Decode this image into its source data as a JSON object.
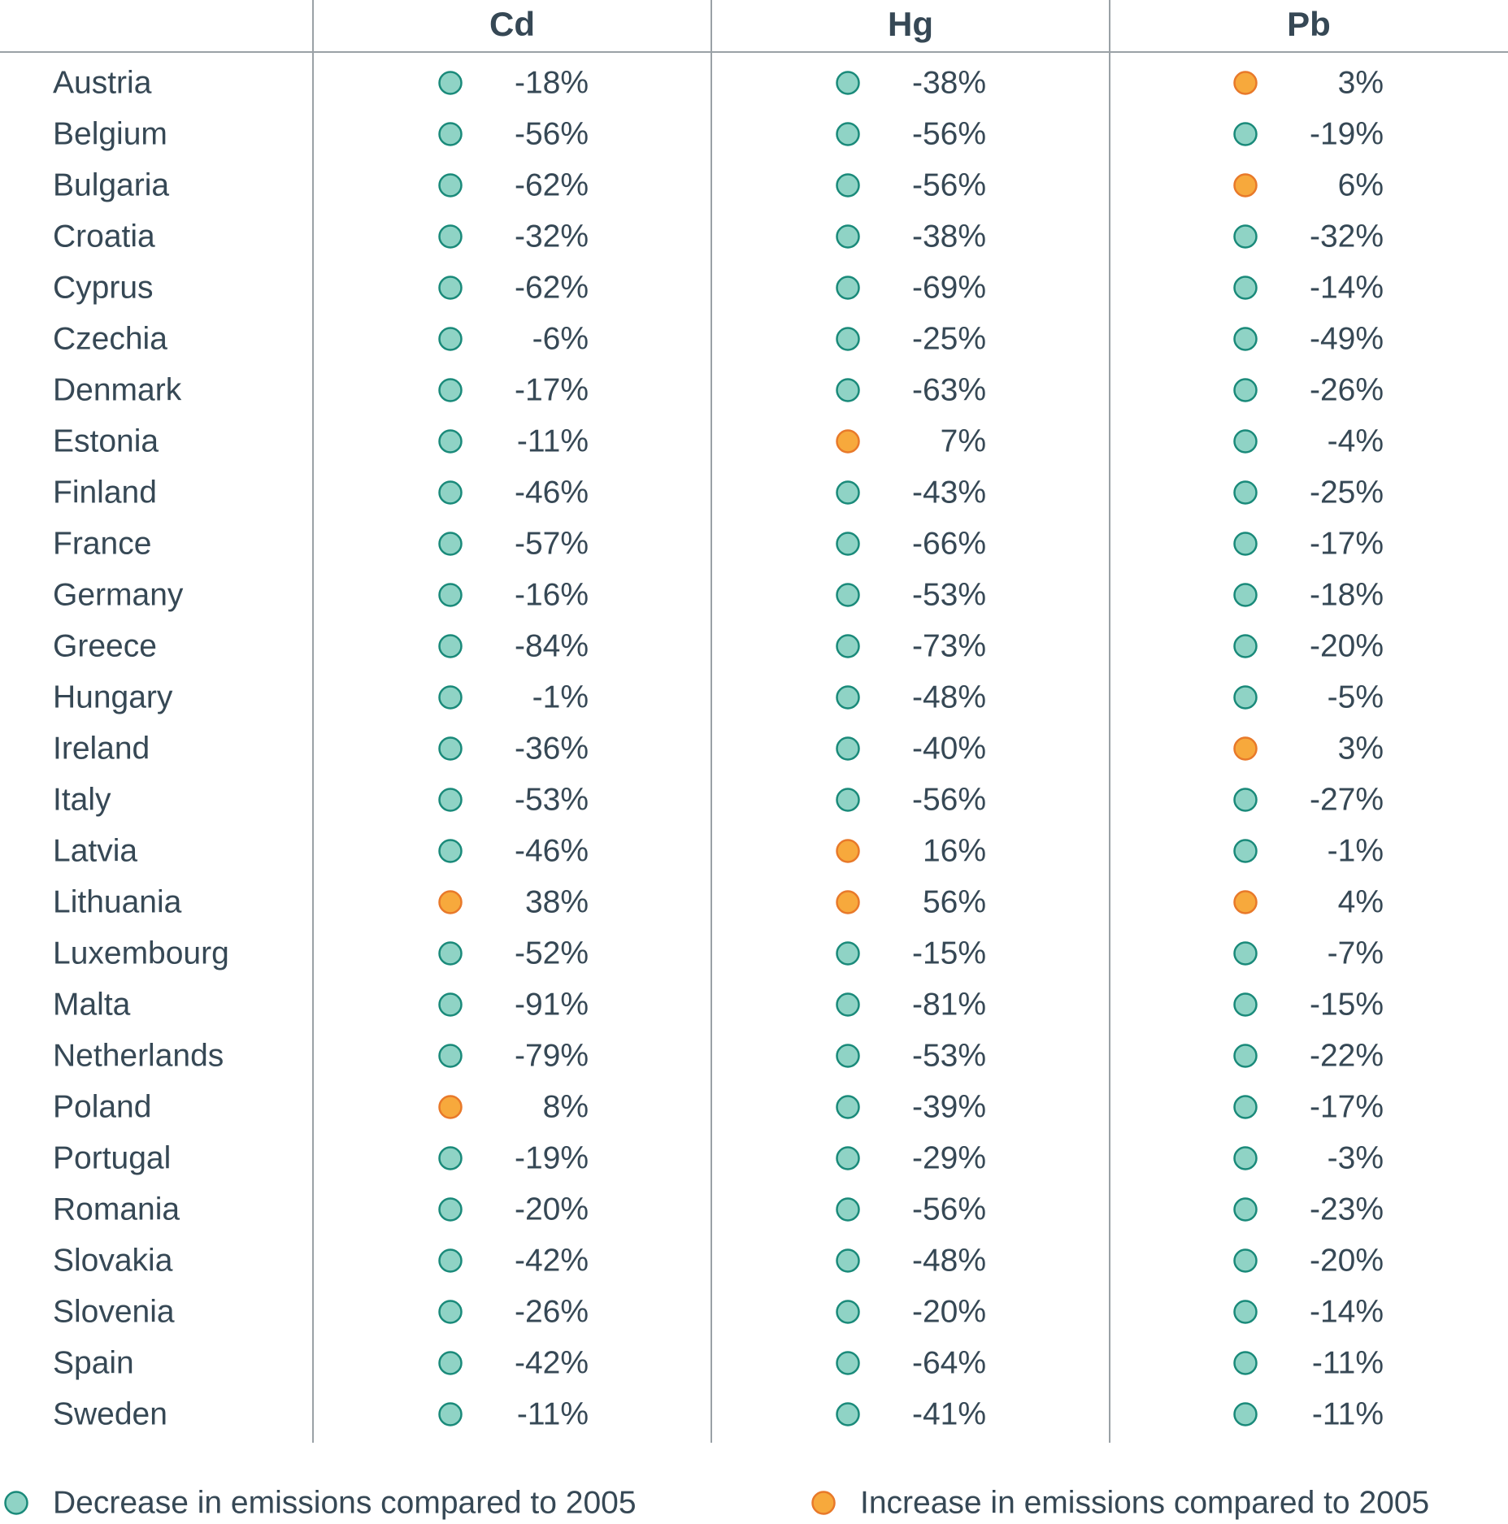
{
  "chart_data": {
    "type": "table",
    "columns": [
      "Cd",
      "Hg",
      "Pb"
    ],
    "rows": [
      {
        "country": "Austria",
        "values": [
          -18,
          -38,
          3
        ],
        "labels": [
          "-18%",
          "-38%",
          "3%"
        ]
      },
      {
        "country": "Belgium",
        "values": [
          -56,
          -56,
          -19
        ],
        "labels": [
          "-56%",
          "-56%",
          "-19%"
        ]
      },
      {
        "country": "Bulgaria",
        "values": [
          -62,
          -56,
          6
        ],
        "labels": [
          "-62%",
          "-56%",
          "6%"
        ]
      },
      {
        "country": "Croatia",
        "values": [
          -32,
          -38,
          -32
        ],
        "labels": [
          "-32%",
          "-38%",
          "-32%"
        ]
      },
      {
        "country": "Cyprus",
        "values": [
          -62,
          -69,
          -14
        ],
        "labels": [
          "-62%",
          "-69%",
          "-14%"
        ]
      },
      {
        "country": "Czechia",
        "values": [
          -6,
          -25,
          -49
        ],
        "labels": [
          "-6%",
          "-25%",
          "-49%"
        ]
      },
      {
        "country": "Denmark",
        "values": [
          -17,
          -63,
          -26
        ],
        "labels": [
          "-17%",
          "-63%",
          "-26%"
        ]
      },
      {
        "country": "Estonia",
        "values": [
          -11,
          7,
          -4
        ],
        "labels": [
          "-11%",
          "7%",
          "-4%"
        ]
      },
      {
        "country": "Finland",
        "values": [
          -46,
          -43,
          -25
        ],
        "labels": [
          "-46%",
          "-43%",
          "-25%"
        ]
      },
      {
        "country": "France",
        "values": [
          -57,
          -66,
          -17
        ],
        "labels": [
          "-57%",
          "-66%",
          "-17%"
        ]
      },
      {
        "country": "Germany",
        "values": [
          -16,
          -53,
          -18
        ],
        "labels": [
          "-16%",
          "-53%",
          "-18%"
        ]
      },
      {
        "country": "Greece",
        "values": [
          -84,
          -73,
          -20
        ],
        "labels": [
          "-84%",
          "-73%",
          "-20%"
        ]
      },
      {
        "country": "Hungary",
        "values": [
          -1,
          -48,
          -5
        ],
        "labels": [
          "-1%",
          "-48%",
          "-5%"
        ]
      },
      {
        "country": "Ireland",
        "values": [
          -36,
          -40,
          3
        ],
        "labels": [
          "-36%",
          "-40%",
          "3%"
        ]
      },
      {
        "country": "Italy",
        "values": [
          -53,
          -56,
          -27
        ],
        "labels": [
          "-53%",
          "-56%",
          "-27%"
        ]
      },
      {
        "country": "Latvia",
        "values": [
          -46,
          16,
          -1
        ],
        "labels": [
          "-46%",
          "16%",
          "-1%"
        ]
      },
      {
        "country": "Lithuania",
        "values": [
          38,
          56,
          4
        ],
        "labels": [
          "38%",
          "56%",
          "4%"
        ]
      },
      {
        "country": "Luxembourg",
        "values": [
          -52,
          -15,
          -7
        ],
        "labels": [
          "-52%",
          "-15%",
          "-7%"
        ]
      },
      {
        "country": "Malta",
        "values": [
          -91,
          -81,
          -15
        ],
        "labels": [
          "-91%",
          "-81%",
          "-15%"
        ]
      },
      {
        "country": "Netherlands",
        "values": [
          -79,
          -53,
          -22
        ],
        "labels": [
          "-79%",
          "-53%",
          "-22%"
        ]
      },
      {
        "country": "Poland",
        "values": [
          8,
          -39,
          -17
        ],
        "labels": [
          "8%",
          "-39%",
          "-17%"
        ]
      },
      {
        "country": "Portugal",
        "values": [
          -19,
          -29,
          -3
        ],
        "labels": [
          "-19%",
          "-29%",
          "-3%"
        ]
      },
      {
        "country": "Romania",
        "values": [
          -20,
          -56,
          -23
        ],
        "labels": [
          "-20%",
          "-56%",
          "-23%"
        ]
      },
      {
        "country": "Slovakia",
        "values": [
          -42,
          -48,
          -20
        ],
        "labels": [
          "-42%",
          "-48%",
          "-20%"
        ]
      },
      {
        "country": "Slovenia",
        "values": [
          -26,
          -20,
          -14
        ],
        "labels": [
          "-26%",
          "-20%",
          "-14%"
        ]
      },
      {
        "country": "Spain",
        "values": [
          -42,
          -64,
          -11
        ],
        "labels": [
          "-42%",
          "-64%",
          "-11%"
        ]
      },
      {
        "country": "Sweden",
        "values": [
          -11,
          -41,
          -11
        ],
        "labels": [
          "-11%",
          "-41%",
          "-11%"
        ]
      }
    ],
    "legend": [
      {
        "label": "Decrease in emissions compared to 2005",
        "color": "#8fd3c5",
        "stroke": "#1a8a7a"
      },
      {
        "label": "Increase in emissions compared to 2005",
        "color": "#f7a93c",
        "stroke": "#e8792a"
      }
    ],
    "legend_placement": "bottom",
    "grid": false
  },
  "colors": {
    "text": "#364855",
    "rule": "#9aa1a6",
    "decrease_fill": "#8fd3c5",
    "decrease_stroke": "#1a8a7a",
    "increase_fill": "#f7a93c",
    "increase_stroke": "#e8792a"
  }
}
